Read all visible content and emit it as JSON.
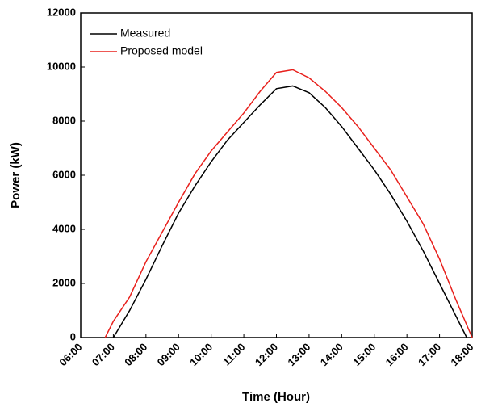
{
  "chart_data": {
    "type": "line",
    "x_label": "Time (Hour)",
    "y_label": "Power (kW)",
    "xticks": [
      "06:00",
      "07:00",
      "08:00",
      "09:00",
      "10:00",
      "11:00",
      "12:00",
      "13:00",
      "14:00",
      "15:00",
      "16:00",
      "17:00",
      "18:00"
    ],
    "ylim": [
      0,
      12000
    ],
    "yticks": [
      0,
      2000,
      4000,
      6000,
      8000,
      10000,
      12000
    ],
    "legend": "upper left",
    "series": [
      {
        "name": "Measured",
        "color": "#000000",
        "x": [
          "07:00",
          "07:30",
          "08:00",
          "08:30",
          "09:00",
          "09:30",
          "10:00",
          "10:30",
          "11:00",
          "11:30",
          "12:00",
          "12:30",
          "13:00",
          "13:30",
          "14:00",
          "14:30",
          "15:00",
          "15:30",
          "16:00",
          "16:30",
          "17:00",
          "17:30",
          "17:50"
        ],
        "values": [
          0,
          1000,
          2150,
          3400,
          4600,
          5600,
          6500,
          7300,
          7950,
          8600,
          9200,
          9300,
          9050,
          8500,
          7800,
          7000,
          6200,
          5300,
          4300,
          3200,
          2000,
          800,
          0
        ]
      },
      {
        "name": "Proposed model",
        "color": "#e8201c",
        "x": [
          "06:45",
          "07:00",
          "07:30",
          "08:00",
          "08:30",
          "09:00",
          "09:30",
          "10:00",
          "10:30",
          "11:00",
          "11:30",
          "12:00",
          "12:30",
          "13:00",
          "13:30",
          "14:00",
          "14:30",
          "15:00",
          "15:30",
          "16:00",
          "16:30",
          "17:00",
          "17:30",
          "18:00"
        ],
        "values": [
          0,
          600,
          1500,
          2800,
          3900,
          5000,
          6050,
          6900,
          7600,
          8300,
          9100,
          9800,
          9900,
          9600,
          9100,
          8500,
          7800,
          7000,
          6200,
          5200,
          4200,
          2900,
          1400,
          0
        ]
      }
    ]
  }
}
